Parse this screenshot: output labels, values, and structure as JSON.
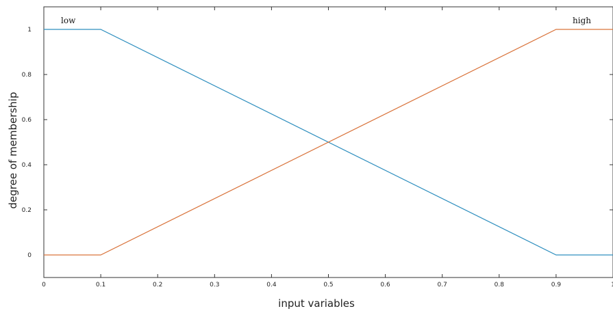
{
  "chart_data": {
    "type": "line",
    "title": "",
    "xlabel": "input variables",
    "ylabel": "degree of membership",
    "xlim": [
      0,
      1
    ],
    "ylim": [
      -0.1,
      1.1
    ],
    "xticks": [
      0,
      0.1,
      0.2,
      0.3,
      0.4,
      0.5,
      0.6,
      0.7,
      0.8,
      0.9,
      1
    ],
    "xtick_labels": [
      "0",
      "0.1",
      "0.2",
      "0.3",
      "0.4",
      "0.5",
      "0.6",
      "0.7",
      "0.8",
      "0.9",
      "1"
    ],
    "yticks": [
      0,
      0.2,
      0.4,
      0.6,
      0.8,
      1
    ],
    "ytick_labels": [
      "0",
      "0.2",
      "0.4",
      "0.6",
      "0.8",
      "1"
    ],
    "grid": false,
    "series": [
      {
        "name": "low",
        "color": "#2f8fbf",
        "x": [
          0,
          0.1,
          0.9,
          1
        ],
        "y": [
          1,
          1,
          0,
          0
        ]
      },
      {
        "name": "high",
        "color": "#d9733b",
        "x": [
          0,
          0.1,
          0.9,
          1
        ],
        "y": [
          0,
          0,
          1,
          1
        ]
      }
    ]
  }
}
